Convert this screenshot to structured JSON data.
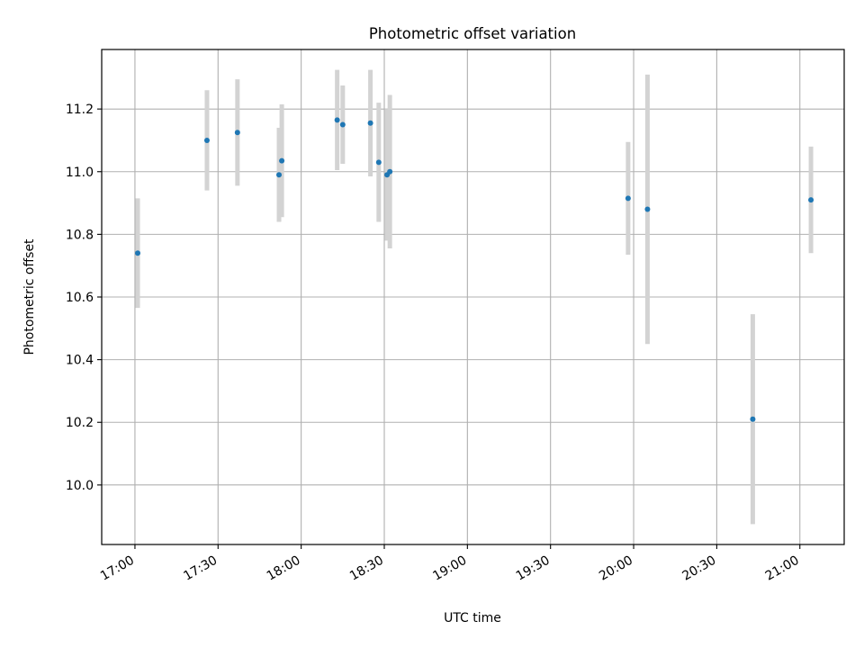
{
  "chart_data": {
    "type": "scatter",
    "title": "Photometric offset variation",
    "xlabel": "UTC time",
    "ylabel": "Photometric offset",
    "x_unit": "UTC time of day",
    "xlim": [
      "16:48",
      "21:16"
    ],
    "ylim": [
      9.81,
      11.39
    ],
    "x_ticks": [
      "17:00",
      "17:30",
      "18:00",
      "18:30",
      "19:00",
      "19:30",
      "20:00",
      "20:30",
      "21:00"
    ],
    "y_ticks": [
      "10.0",
      "10.2",
      "10.4",
      "10.6",
      "10.8",
      "11.0",
      "11.2"
    ],
    "grid": true,
    "marker_color": "#1f77b4",
    "errorbar_color": "#d3d3d3",
    "points": [
      {
        "x": "17:01",
        "y": 10.74,
        "err": 0.175
      },
      {
        "x": "17:26",
        "y": 11.1,
        "err": 0.16
      },
      {
        "x": "17:37",
        "y": 11.125,
        "err": 0.17
      },
      {
        "x": "17:52",
        "y": 10.99,
        "err": 0.15
      },
      {
        "x": "17:53",
        "y": 11.035,
        "err": 0.18
      },
      {
        "x": "18:13",
        "y": 11.165,
        "err": 0.16
      },
      {
        "x": "18:15",
        "y": 11.15,
        "err": 0.125
      },
      {
        "x": "18:25",
        "y": 11.155,
        "err": 0.17
      },
      {
        "x": "18:28",
        "y": 11.03,
        "err": 0.19
      },
      {
        "x": "18:31",
        "y": 10.99,
        "err": 0.21
      },
      {
        "x": "18:32",
        "y": 11.0,
        "err": 0.245
      },
      {
        "x": "19:58",
        "y": 10.915,
        "err": 0.18
      },
      {
        "x": "20:05",
        "y": 10.88,
        "err": 0.43
      },
      {
        "x": "20:43",
        "y": 10.21,
        "err": 0.335
      },
      {
        "x": "21:04",
        "y": 10.91,
        "err": 0.17
      }
    ]
  }
}
